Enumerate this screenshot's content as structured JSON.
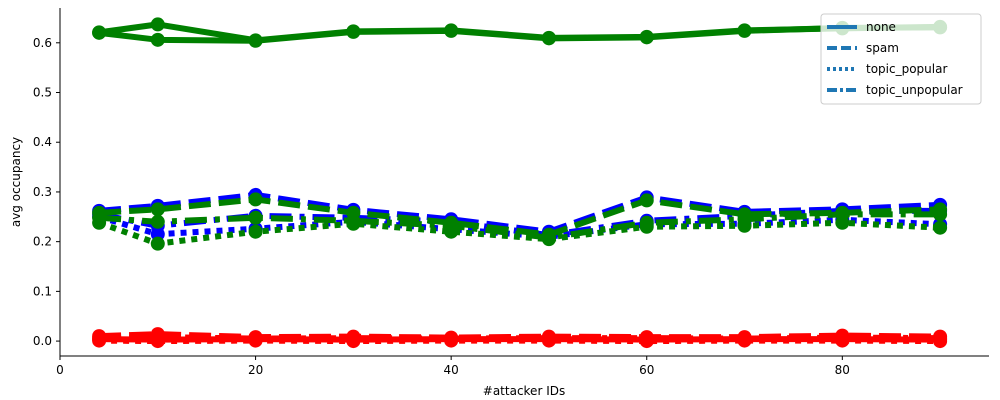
{
  "chart_data": {
    "type": "line",
    "xlabel": "#attacker IDs",
    "ylabel": "avg occupancy",
    "xlim": [
      0,
      95
    ],
    "ylim": [
      -0.03,
      0.67
    ],
    "x_ticks": [
      0,
      20,
      40,
      60,
      80
    ],
    "y_ticks": [
      0.0,
      0.1,
      0.2,
      0.3,
      0.4,
      0.5,
      0.6
    ],
    "y_tick_labels": [
      "0.0",
      "0.1",
      "0.2",
      "0.3",
      "0.4",
      "0.5",
      "0.6"
    ],
    "x": [
      4,
      10,
      20,
      30,
      40,
      50,
      60,
      70,
      80,
      90
    ],
    "legend": {
      "placement": "top-right",
      "color": "#1f77b4",
      "entries": [
        {
          "label": "none",
          "style": "solid"
        },
        {
          "label": "spam",
          "style": "dashed"
        },
        {
          "label": "topic_popular",
          "style": "dotted"
        },
        {
          "label": "topic_unpopular",
          "style": "dashdot"
        }
      ]
    },
    "series": [
      {
        "group": "green",
        "color": "#008000",
        "style": "solid",
        "values": [
          0.62,
          0.606,
          0.604,
          0.622,
          0.624,
          0.609,
          0.611,
          0.624,
          0.63,
          0.631
        ]
      },
      {
        "group": "green",
        "color": "#008000",
        "style": "solid",
        "values": [
          0.621,
          0.637,
          0.605,
          0.623,
          0.625,
          0.61,
          0.612,
          0.625,
          0.629,
          0.632
        ]
      },
      {
        "group": "blue",
        "color": "#0000ff",
        "style": "dashed",
        "values": [
          0.262,
          0.272,
          0.294,
          0.264,
          0.245,
          0.22,
          0.289,
          0.26,
          0.265,
          0.274
        ]
      },
      {
        "group": "blue",
        "color": "#0000ff",
        "style": "dashdot",
        "values": [
          0.255,
          0.232,
          0.252,
          0.248,
          0.24,
          0.213,
          0.242,
          0.252,
          0.262,
          0.262
        ]
      },
      {
        "group": "blue",
        "color": "#0000ff",
        "style": "dotted",
        "values": [
          0.25,
          0.215,
          0.226,
          0.24,
          0.225,
          0.21,
          0.235,
          0.236,
          0.244,
          0.235
        ]
      },
      {
        "group": "green",
        "color": "#008000",
        "style": "dashed",
        "values": [
          0.258,
          0.265,
          0.285,
          0.258,
          0.238,
          0.214,
          0.283,
          0.255,
          0.258,
          0.265
        ]
      },
      {
        "group": "green",
        "color": "#008000",
        "style": "dashdot",
        "values": [
          0.248,
          0.24,
          0.248,
          0.242,
          0.232,
          0.208,
          0.238,
          0.245,
          0.255,
          0.255
        ]
      },
      {
        "group": "green",
        "color": "#008000",
        "style": "dotted",
        "values": [
          0.238,
          0.196,
          0.22,
          0.236,
          0.22,
          0.205,
          0.23,
          0.232,
          0.238,
          0.228
        ]
      },
      {
        "group": "red",
        "color": "#ff0000",
        "style": "solid",
        "values": [
          0.004,
          0.003,
          0.004,
          0.003,
          0.004,
          0.004,
          0.003,
          0.004,
          0.004,
          0.003
        ]
      },
      {
        "group": "red",
        "color": "#ff0000",
        "style": "dashed",
        "values": [
          0.01,
          0.014,
          0.008,
          0.009,
          0.007,
          0.009,
          0.008,
          0.008,
          0.011,
          0.009
        ]
      },
      {
        "group": "red",
        "color": "#ff0000",
        "style": "dotted",
        "values": [
          0.001,
          0.0,
          0.001,
          0.0,
          0.001,
          0.001,
          0.0,
          0.001,
          0.001,
          0.0
        ]
      },
      {
        "group": "red",
        "color": "#ff0000",
        "style": "dashdot",
        "values": [
          0.006,
          0.008,
          0.005,
          0.006,
          0.005,
          0.006,
          0.006,
          0.005,
          0.007,
          0.006
        ]
      }
    ]
  }
}
